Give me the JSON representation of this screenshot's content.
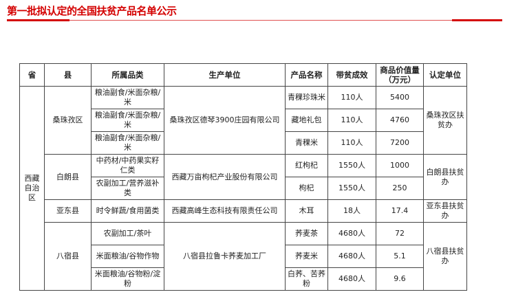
{
  "title": "第一批拟认定的全国扶贫产品名单公示",
  "colors": {
    "accent": "#d40000"
  },
  "headers": [
    "省",
    "县",
    "所属品类",
    "生产单位",
    "产品名称",
    "带贫成效",
    "商品价值量（万元）",
    "认定单位"
  ],
  "province": "西藏自治区",
  "groups": [
    {
      "county": "桑珠孜区",
      "producer": "桑珠孜区德琴3900庄园有限公司",
      "certifier": "桑珠孜区扶贫办",
      "rows": [
        {
          "category": "粮油副食/米面杂粮/米",
          "product": "青稞珍珠米",
          "effect": "110人",
          "value": "5400"
        },
        {
          "category": "粮油副食/米面杂粮/米",
          "product": "藏地礼包",
          "effect": "110人",
          "value": "4760"
        },
        {
          "category": "粮油副食/米面杂粮/米",
          "product": "青稞米",
          "effect": "110人",
          "value": "7200"
        }
      ]
    },
    {
      "county": "白朗县",
      "producer": "西藏万亩枸杞产业股份有限公司",
      "certifier": "白朗县扶贫办",
      "rows": [
        {
          "category": "中药材/中药果实籽仁类",
          "product": "红枸杞",
          "effect": "1550人",
          "value": "1000"
        },
        {
          "category": "农副加工/营养滋补类",
          "product": "枸杞",
          "effect": "1550人",
          "value": "250"
        }
      ]
    },
    {
      "county": "亚东县",
      "producer": "西藏高峰生态科技有限责任公司",
      "certifier": "亚东县扶贫办",
      "rows": [
        {
          "category": "时令鲜蔬/食用菌类",
          "product": "木耳",
          "effect": "18人",
          "value": "17.4"
        }
      ]
    },
    {
      "county": "八宿县",
      "producer": "八宿县拉鲁卡荞麦加工厂",
      "certifier": "八宿县扶贫办",
      "rows": [
        {
          "category": "农副加工/茶叶",
          "product": "荞麦茶",
          "effect": "4680人",
          "value": "72"
        },
        {
          "category": "米面粮油/谷物作物",
          "product": "荞麦米",
          "effect": "4680人",
          "value": "5.1"
        },
        {
          "category": "米面粮油/谷物粉/淀粉",
          "product": "白荞、苦荞粉",
          "effect": "4680人",
          "value": "9.6"
        }
      ]
    }
  ]
}
